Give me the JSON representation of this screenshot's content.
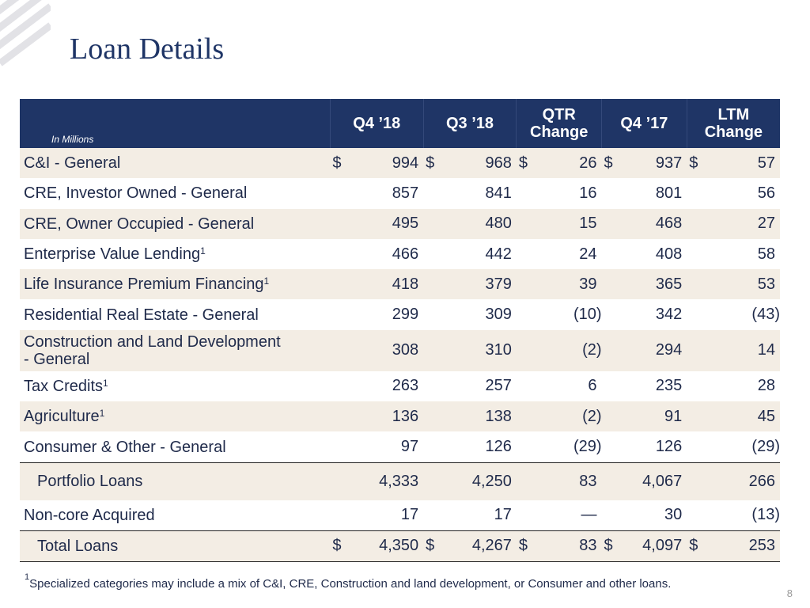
{
  "title": "Loan Details",
  "header": {
    "units_note": "In Millions",
    "columns": [
      "Q4 ’18",
      "Q3 ’18",
      "QTR Change",
      "Q4 ’17",
      "LTM Change"
    ]
  },
  "rows": [
    {
      "label": "C&I - General",
      "sup": "",
      "values": [
        "994",
        "968",
        "26",
        "937",
        "57"
      ],
      "currency": "$"
    },
    {
      "label": "CRE, Investor Owned - General",
      "sup": "",
      "values": [
        "857",
        "841",
        "16",
        "801",
        "56"
      ]
    },
    {
      "label": "CRE, Owner Occupied - General",
      "sup": "",
      "values": [
        "495",
        "480",
        "15",
        "468",
        "27"
      ]
    },
    {
      "label": "Enterprise Value Lending",
      "sup": "1",
      "values": [
        "466",
        "442",
        "24",
        "408",
        "58"
      ]
    },
    {
      "label": "Life Insurance Premium Financing",
      "sup": "1",
      "values": [
        "418",
        "379",
        "39",
        "365",
        "53"
      ]
    },
    {
      "label": "Residential Real Estate - General",
      "sup": "",
      "values": [
        "299",
        "309",
        "(10)",
        "342",
        "(43)"
      ]
    },
    {
      "label": "Construction and Land Development - General",
      "sup": "",
      "values": [
        "308",
        "310",
        "(2)",
        "294",
        "14"
      ]
    },
    {
      "label": "Tax Credits",
      "sup": "1",
      "values": [
        "263",
        "257",
        "6",
        "235",
        "28"
      ]
    },
    {
      "label": "Agriculture",
      "sup": "1",
      "values": [
        "136",
        "138",
        "(2)",
        "91",
        "45"
      ]
    },
    {
      "label": "Consumer & Other - General",
      "sup": "",
      "values": [
        "97",
        "126",
        "(29)",
        "126",
        "(29)"
      ]
    }
  ],
  "portfolio": {
    "label": "Portfolio Loans",
    "values": [
      "4,333",
      "4,250",
      "83",
      "4,067",
      "266"
    ]
  },
  "noncore": {
    "label": "Non-core Acquired",
    "values": [
      "17",
      "17",
      "—",
      "30",
      "(13)"
    ]
  },
  "total": {
    "label": "Total Loans",
    "values": [
      "4,350",
      "4,267",
      "83",
      "4,097",
      "253"
    ],
    "currency": "$"
  },
  "footnote": {
    "sup": "1",
    "text": "Specialized categories may include a mix of C&I, CRE, Construction and land development, or Consumer and other loans."
  },
  "page_number": "8"
}
